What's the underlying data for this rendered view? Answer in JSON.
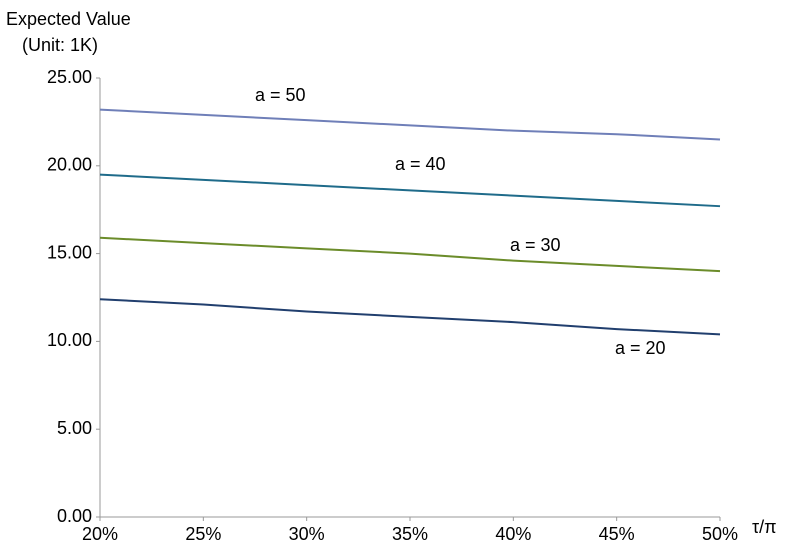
{
  "chart_data": {
    "type": "line",
    "y_label": [
      "Expected Value",
      "(Unit: 1K)"
    ],
    "x_label": "τ/π",
    "x": [
      20,
      25,
      30,
      35,
      40,
      45,
      50
    ],
    "xlim": [
      20,
      50
    ],
    "xticks": [
      {
        "value": 20,
        "label": "20%"
      },
      {
        "value": 25,
        "label": "25%"
      },
      {
        "value": 30,
        "label": "30%"
      },
      {
        "value": 35,
        "label": "35%"
      },
      {
        "value": 40,
        "label": "40%"
      },
      {
        "value": 45,
        "label": "45%"
      },
      {
        "value": 50,
        "label": "50%"
      }
    ],
    "ylim": [
      0,
      25
    ],
    "yticks": [
      {
        "value": 0,
        "label": "0.00"
      },
      {
        "value": 5,
        "label": "5.00"
      },
      {
        "value": 10,
        "label": "10.00"
      },
      {
        "value": 15,
        "label": "15.00"
      },
      {
        "value": 20,
        "label": "20.00"
      },
      {
        "value": 25,
        "label": "25.00"
      }
    ],
    "grid": false,
    "series": [
      {
        "name": "a = 50",
        "color": "#6f7fb8",
        "values": [
          23.2,
          22.9,
          22.6,
          22.3,
          22.0,
          21.8,
          21.5
        ]
      },
      {
        "name": "a = 40",
        "color": "#1f6b8a",
        "values": [
          19.5,
          19.2,
          18.9,
          18.6,
          18.3,
          18.0,
          17.7
        ]
      },
      {
        "name": "a = 30",
        "color": "#6b8c2a",
        "values": [
          15.9,
          15.6,
          15.3,
          15.0,
          14.6,
          14.3,
          14.0
        ]
      },
      {
        "name": "a = 20",
        "color": "#213f6e",
        "values": [
          12.4,
          12.1,
          11.7,
          11.4,
          11.1,
          10.7,
          10.4
        ]
      }
    ]
  }
}
